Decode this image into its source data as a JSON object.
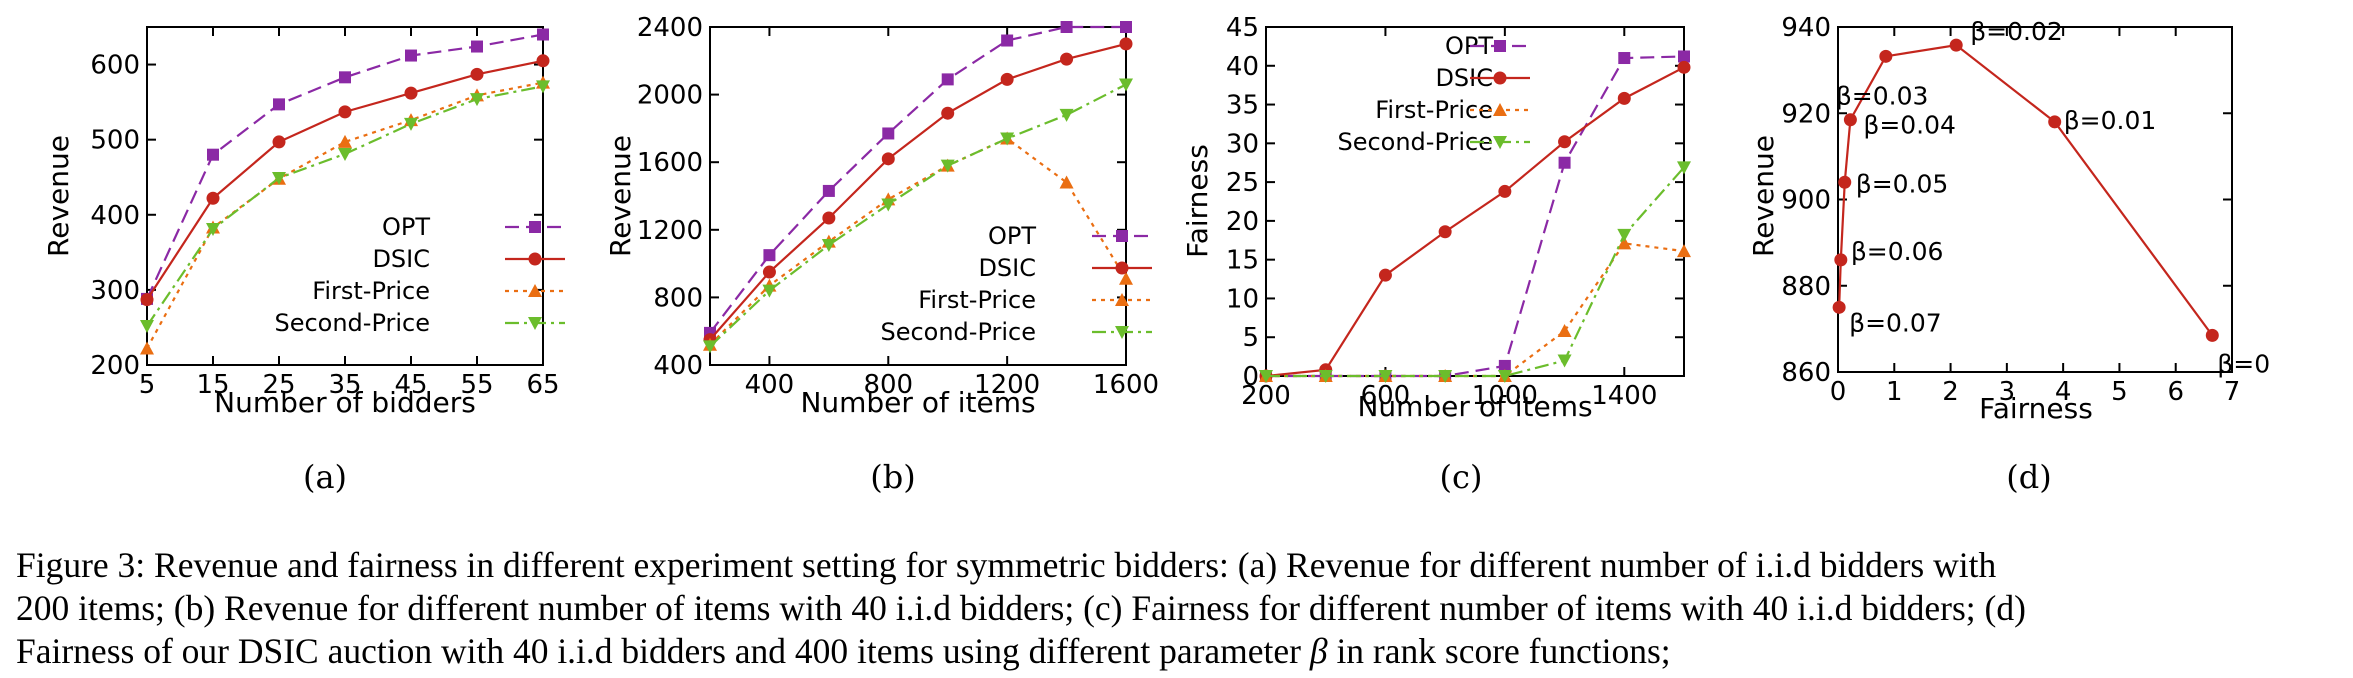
{
  "colors": {
    "OPT": "#8b29a5",
    "DSIC": "#c4261d",
    "First-Price": "#ea6e12",
    "Second-Price": "#6bbd2c",
    "axis": "#000000"
  },
  "chart_data": [
    {
      "type": "line",
      "subfigure": "(a)",
      "xlabel": "Number of bidders",
      "ylabel": "Revenue",
      "xlim": [
        5,
        65
      ],
      "ylim": [
        200,
        650
      ],
      "xticks": [
        "5",
        "15",
        "25",
        "35",
        "45",
        "55",
        "65"
      ],
      "yticks": [
        "200",
        "300",
        "400",
        "500",
        "600"
      ],
      "legend_position": "bottom-right",
      "x": [
        5,
        15,
        25,
        35,
        45,
        55,
        65
      ],
      "series": [
        {
          "name": "OPT",
          "values": [
            288,
            480,
            547,
            583,
            612,
            624,
            640
          ]
        },
        {
          "name": "DSIC",
          "values": [
            287,
            422,
            497,
            537,
            562,
            587,
            605
          ]
        },
        {
          "name": "First-Price",
          "values": [
            222,
            383,
            448,
            497,
            526,
            559,
            576
          ]
        },
        {
          "name": "Second-Price",
          "values": [
            252,
            381,
            449,
            481,
            521,
            554,
            571
          ]
        }
      ]
    },
    {
      "type": "line",
      "subfigure": "(b)",
      "xlabel": "Number of items",
      "ylabel": "Revenue",
      "xlim": [
        200,
        1600
      ],
      "ylim": [
        400,
        2400
      ],
      "xticks": [
        "400",
        "800",
        "1200",
        "1600"
      ],
      "yticks": [
        "400",
        "800",
        "1200",
        "1600",
        "2000",
        "2400"
      ],
      "legend_position": "bottom-right",
      "x": [
        200,
        400,
        600,
        800,
        1000,
        1200,
        1400,
        1600
      ],
      "series": [
        {
          "name": "OPT",
          "values": [
            590,
            1050,
            1430,
            1770,
            2090,
            2320,
            2400,
            2400
          ]
        },
        {
          "name": "DSIC",
          "values": [
            550,
            950,
            1270,
            1620,
            1890,
            2090,
            2210,
            2300
          ]
        },
        {
          "name": "First-Price",
          "values": [
            520,
            870,
            1130,
            1380,
            1580,
            1740,
            1480,
            910
          ]
        },
        {
          "name": "Second-Price",
          "values": [
            510,
            840,
            1110,
            1350,
            1580,
            1740,
            1880,
            2060
          ]
        }
      ]
    },
    {
      "type": "line",
      "subfigure": "(c)",
      "xlabel": "Number of items",
      "ylabel": "Fairness",
      "xlim": [
        200,
        1600
      ],
      "ylim": [
        0,
        45
      ],
      "xticks": [
        "200",
        "600",
        "1000",
        "1400"
      ],
      "yticks": [
        "0",
        "5",
        "10",
        "15",
        "20",
        "25",
        "30",
        "35",
        "40",
        "45"
      ],
      "legend_position": "top-left",
      "x": [
        200,
        400,
        600,
        800,
        1000,
        1200,
        1400,
        1600
      ],
      "series": [
        {
          "name": "OPT",
          "values": [
            0,
            0,
            0,
            0,
            1.3,
            27.5,
            41,
            41.2
          ]
        },
        {
          "name": "DSIC",
          "values": [
            0,
            0.8,
            13,
            18.6,
            23.8,
            30.2,
            35.8,
            39.8
          ]
        },
        {
          "name": "First-Price",
          "values": [
            0,
            0,
            0,
            0,
            0,
            5.8,
            17.1,
            16.1
          ]
        },
        {
          "name": "Second-Price",
          "values": [
            0,
            0,
            0,
            0,
            0,
            2,
            18.2,
            26.9
          ]
        }
      ]
    },
    {
      "type": "line",
      "subfigure": "(d)",
      "xlabel": "Fairness",
      "ylabel": "Revenue",
      "xlim": [
        0,
        7
      ],
      "ylim": [
        860,
        940
      ],
      "xticks": [
        "0",
        "1",
        "2",
        "3",
        "4",
        "5",
        "6",
        "7"
      ],
      "yticks": [
        "860",
        "880",
        "900",
        "920",
        "940"
      ],
      "series": [
        {
          "name": "DSIC",
          "points": [
            {
              "x": 6.65,
              "y": 868.5,
              "label": "β=0"
            },
            {
              "x": 3.85,
              "y": 918,
              "label": "β=0.01"
            },
            {
              "x": 2.1,
              "y": 935.8,
              "label": "β=0.02"
            },
            {
              "x": 0.85,
              "y": 933.2,
              "label": "β=0.03"
            },
            {
              "x": 0.22,
              "y": 918.5,
              "label": "β=0.04"
            },
            {
              "x": 0.12,
              "y": 904,
              "label": "β=0.05"
            },
            {
              "x": 0.05,
              "y": 886,
              "label": "β=0.06"
            },
            {
              "x": 0.02,
              "y": 875,
              "label": "β=0.07"
            }
          ]
        }
      ]
    }
  ],
  "subcaptions": [
    "(a)",
    "(b)",
    "(c)",
    "(d)"
  ],
  "caption": {
    "line1": "Figure 3: Revenue and fairness in different experiment setting for symmetric bidders: (a) Revenue for different number of i.i.d bidders with",
    "line2": "200 items; (b) Revenue for different number of items with 40 i.i.d bidders; (c) Fairness for different number of items with 40 i.i.d bidders; (d)",
    "line3a": "Fairness of our DSIC auction with 40 i.i.d bidders and 400 items using different parameter ",
    "beta": "β",
    "line3b": " in rank score functions;"
  }
}
